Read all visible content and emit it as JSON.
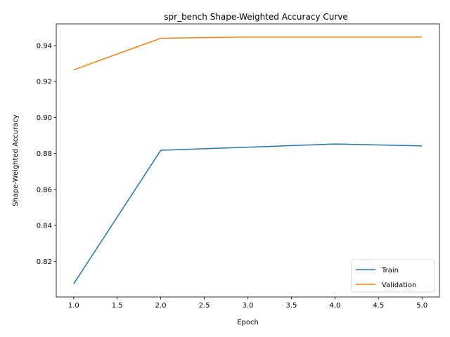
{
  "chart_data": {
    "type": "line",
    "title": "spr_bench Shape-Weighted Accuracy Curve",
    "xlabel": "Epoch",
    "ylabel": "Shape-Weighted Accuracy",
    "x": [
      1,
      2,
      3,
      4,
      5
    ],
    "xlim": [
      0.8,
      5.2
    ],
    "ylim": [
      0.8002,
      0.9521
    ],
    "x_ticks": [
      "1.0",
      "1.5",
      "2.0",
      "2.5",
      "3.0",
      "3.5",
      "4.0",
      "4.5",
      "5.0"
    ],
    "y_ticks": [
      "0.82",
      "0.84",
      "0.86",
      "0.88",
      "0.90",
      "0.92",
      "0.94"
    ],
    "grid": false,
    "legend_position": "lower-right",
    "series": [
      {
        "name": "Train",
        "color": "#1f77b4",
        "values": [
          0.8075,
          0.8818,
          0.8835,
          0.8853,
          0.8842
        ]
      },
      {
        "name": "Validation",
        "color": "#ff7f0e",
        "values": [
          0.9265,
          0.9441,
          0.9448,
          0.9448,
          0.9448
        ]
      }
    ]
  }
}
